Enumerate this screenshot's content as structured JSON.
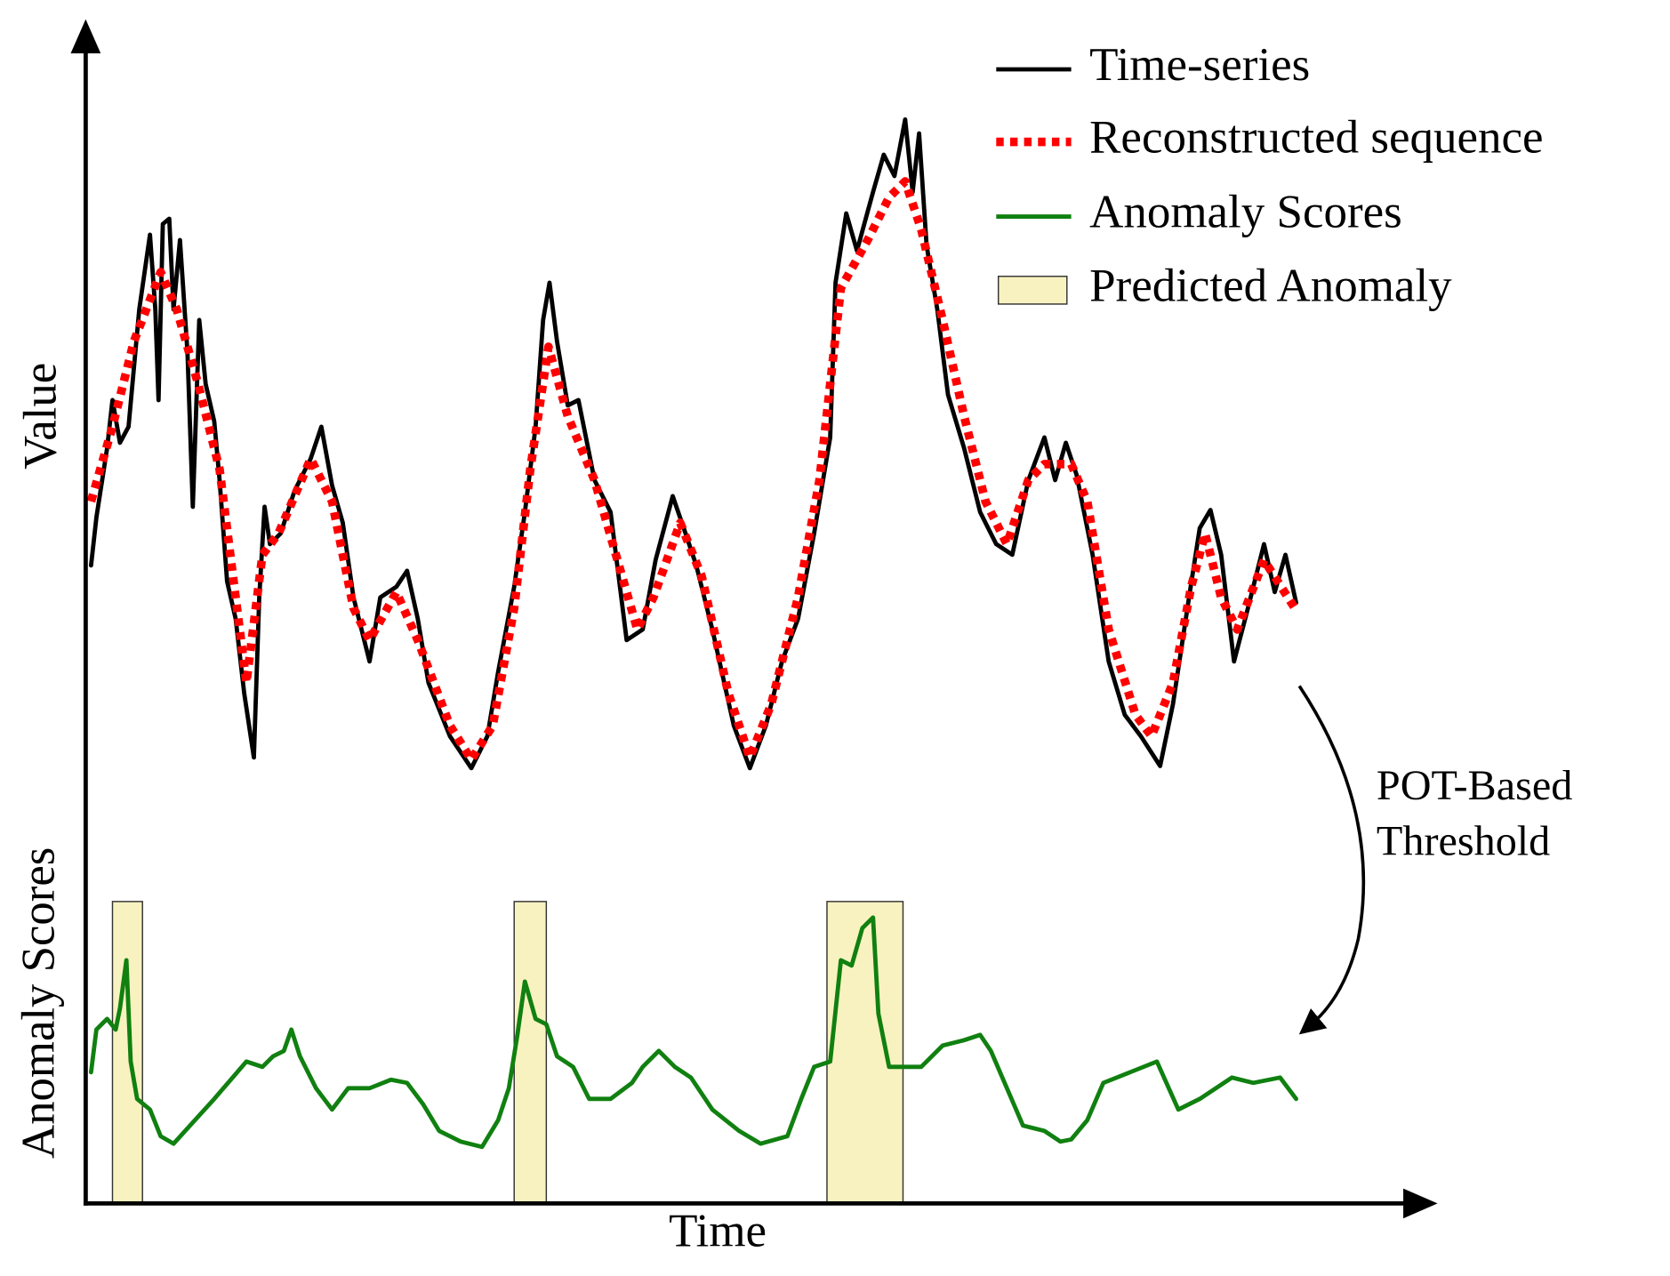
{
  "chart_data": {
    "type": "line",
    "x_label": "Time",
    "y_label": "Value",
    "y_label_lower": "Anomaly Scores",
    "annotation": [
      "POT-Based",
      "Threshold"
    ],
    "xlim": [
      80,
      1340
    ],
    "ylim": [
      0,
      1100
    ],
    "series": [
      {
        "name": "Time-series",
        "color": "#000000",
        "line_style": "solid",
        "x": [
          85,
          90,
          100,
          105,
          112,
          120,
          130,
          140,
          145,
          148,
          152,
          158,
          162,
          168,
          175,
          180,
          186,
          192,
          200,
          205,
          212,
          220,
          228,
          237,
          242,
          247,
          252,
          262,
          275,
          290,
          300,
          310,
          320,
          330,
          345,
          355,
          370,
          380,
          390,
          400,
          420,
          440,
          455,
          465,
          480,
          490,
          500,
          507,
          513,
          520,
          530,
          540,
          555,
          570,
          585,
          600,
          612,
          628,
          640,
          650,
          665,
          685,
          700,
          715,
          730,
          745,
          760,
          775,
          780,
          790,
          800,
          815,
          825,
          835,
          845,
          852,
          858,
          865,
          875,
          885,
          900,
          915,
          930,
          945,
          960,
          975,
          985,
          995,
          1005,
          1020,
          1035,
          1050,
          1065,
          1083,
          1095,
          1110,
          1120,
          1130,
          1140,
          1152,
          1165,
          1180,
          1190,
          1200,
          1210
        ],
        "values": [
          600,
          645,
          710,
          755,
          715,
          730,
          840,
          910,
          840,
          755,
          920,
          925,
          840,
          905,
          800,
          655,
          830,
          770,
          735,
          680,
          585,
          550,
          480,
          420,
          570,
          655,
          620,
          630,
          670,
          700,
          730,
          675,
          640,
          570,
          510,
          570,
          580,
          595,
          550,
          490,
          440,
          410,
          440,
          500,
          580,
          650,
          730,
          830,
          865,
          810,
          750,
          755,
          680,
          650,
          530,
          540,
          605,
          665,
          630,
          600,
          540,
          450,
          410,
          450,
          510,
          550,
          630,
          720,
          865,
          930,
          895,
          950,
          985,
          965,
          1018,
          950,
          1005,
          900,
          840,
          760,
          710,
          650,
          620,
          610,
          680,
          720,
          680,
          715,
          685,
          610,
          510,
          460,
          440,
          412,
          470,
          570,
          635,
          652,
          610,
          510,
          560,
          620,
          575,
          610,
          565
        ]
      },
      {
        "name": "Reconstructed sequence",
        "color": "#ff0000",
        "line_style": "dotted",
        "x": [
          85,
          105,
          125,
          150,
          165,
          185,
          205,
          220,
          230,
          245,
          260,
          290,
          310,
          330,
          345,
          370,
          390,
          420,
          440,
          460,
          480,
          495,
          512,
          530,
          555,
          575,
          595,
          610,
          635,
          655,
          680,
          700,
          720,
          745,
          765,
          785,
          810,
          830,
          845,
          860,
          880,
          900,
          920,
          940,
          960,
          975,
          1000,
          1015,
          1035,
          1060,
          1075,
          1095,
          1112,
          1125,
          1140,
          1155,
          1180,
          1210
        ],
        "values": [
          660,
          730,
          810,
          875,
          840,
          770,
          690,
          570,
          490,
          610,
          630,
          700,
          660,
          560,
          530,
          575,
          530,
          450,
          418,
          450,
          560,
          690,
          805,
          740,
          680,
          610,
          540,
          570,
          640,
          590,
          480,
          420,
          470,
          570,
          680,
          860,
          905,
          945,
          960,
          915,
          830,
          740,
          660,
          620,
          680,
          695,
          695,
          660,
          540,
          460,
          440,
          490,
          580,
          630,
          570,
          540,
          605,
          558
        ]
      },
      {
        "name": "Anomaly Scores",
        "color": "#108010",
        "line_style": "solid",
        "x": [
          85,
          90,
          100,
          108,
          112,
          118,
          122,
          128,
          140,
          150,
          162,
          200,
          230,
          245,
          255,
          265,
          272,
          280,
          295,
          310,
          325,
          345,
          365,
          380,
          395,
          410,
          430,
          450,
          465,
          475,
          483,
          490,
          500,
          510,
          520,
          535,
          550,
          570,
          590,
          600,
          615,
          630,
          645,
          665,
          690,
          710,
          735,
          748,
          760,
          775,
          785,
          795,
          805,
          815,
          820,
          830,
          845,
          860,
          880,
          900,
          915,
          925,
          940,
          955,
          975,
          990,
          1000,
          1015,
          1030,
          1055,
          1080,
          1100,
          1120,
          1150,
          1170,
          1195,
          1210
        ],
        "values": [
          125,
          165,
          175,
          165,
          185,
          230,
          135,
          100,
          90,
          65,
          58,
          100,
          135,
          130,
          140,
          145,
          165,
          140,
          110,
          90,
          110,
          110,
          118,
          115,
          95,
          70,
          60,
          55,
          80,
          110,
          160,
          210,
          175,
          170,
          140,
          130,
          100,
          100,
          115,
          130,
          145,
          130,
          120,
          90,
          70,
          58,
          65,
          100,
          130,
          135,
          230,
          225,
          260,
          270,
          180,
          130,
          130,
          130,
          150,
          155,
          160,
          145,
          110,
          75,
          70,
          60,
          62,
          80,
          115,
          125,
          135,
          90,
          100,
          120,
          115,
          120,
          100
        ]
      }
    ],
    "anomalies": {
      "name": "Predicted Anomaly",
      "color": "#f8f2c0",
      "spans": [
        [
          105,
          133
        ],
        [
          480,
          510
        ],
        [
          772,
          843
        ]
      ]
    }
  }
}
